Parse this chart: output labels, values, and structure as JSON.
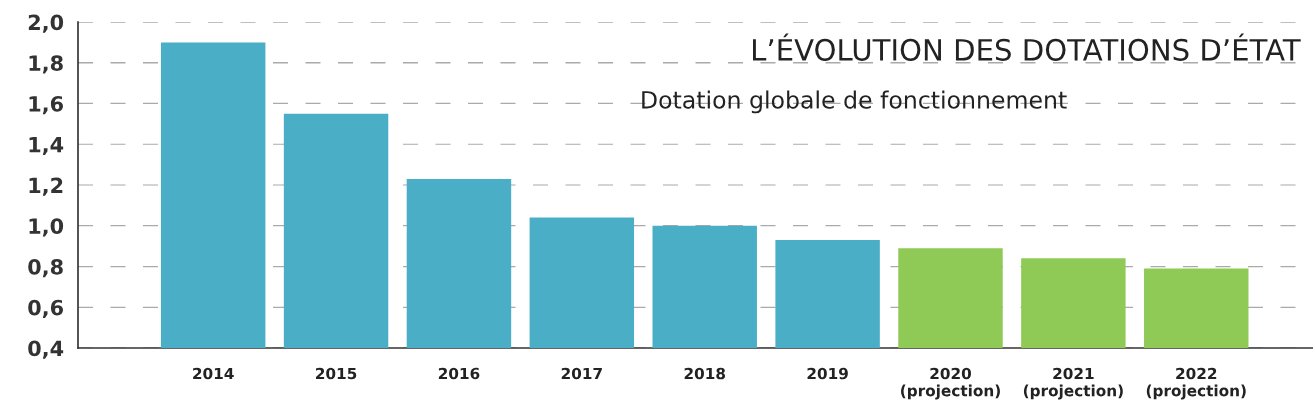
{
  "chart_data": {
    "type": "bar",
    "title": "L’ÉVOLUTION DES DOTATIONS D’ÉTAT",
    "subtitle": "Dotation globale de fonctionnement",
    "categories": [
      "2014",
      "2015",
      "2016",
      "2017",
      "2018",
      "2019",
      "2020\n(projection)",
      "2021\n(projection)",
      "2022\n(projection)"
    ],
    "values": [
      1.9,
      1.55,
      1.23,
      1.04,
      1.0,
      0.93,
      0.89,
      0.84,
      0.79
    ],
    "colors": [
      "#4aafc6",
      "#4aafc6",
      "#4aafc6",
      "#4aafc6",
      "#4aafc6",
      "#4aafc6",
      "#8fca57",
      "#8fca57",
      "#8fca57"
    ],
    "ylim": [
      0.4,
      2.0
    ],
    "yticks": [
      {
        "value": 0.4,
        "label": "0,4"
      },
      {
        "value": 0.6,
        "label": "0,6"
      },
      {
        "value": 0.8,
        "label": "0,8"
      },
      {
        "value": 1.0,
        "label": "1,0"
      },
      {
        "value": 1.2,
        "label": "1,2"
      },
      {
        "value": 1.4,
        "label": "1,4"
      },
      {
        "value": 1.6,
        "label": "1,6"
      },
      {
        "value": 1.8,
        "label": "1,8"
      },
      {
        "value": 2.0,
        "label": "2,0"
      }
    ],
    "grid": "y",
    "legend": false
  }
}
